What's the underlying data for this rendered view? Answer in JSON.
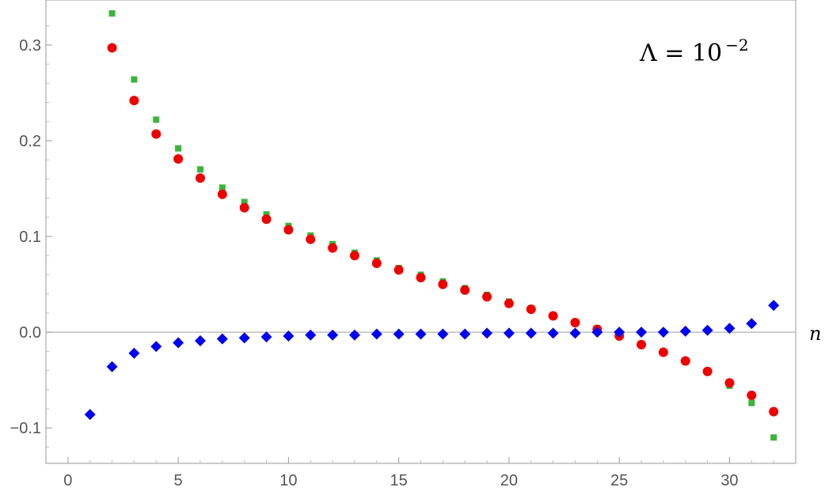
{
  "chart_data": {
    "type": "scatter",
    "title": "",
    "xlabel": "n",
    "ylabel": "",
    "xlim": [
      -1,
      33
    ],
    "ylim": [
      -0.137,
      0.347
    ],
    "x_ticks": [
      0,
      5,
      10,
      15,
      20,
      25,
      30
    ],
    "y_ticks": [
      -0.1,
      0.0,
      0.1,
      0.2,
      0.3
    ],
    "y_tick_labels": [
      "−0.1",
      "0.0",
      "0.1",
      "0.2",
      "0.3"
    ],
    "x_tick_labels": [
      "0",
      "5",
      "10",
      "15",
      "20",
      "25",
      "30"
    ],
    "grid": false,
    "annotation": {
      "base": "Λ = 10",
      "exponent": "−2"
    },
    "series": [
      {
        "marker": "square",
        "color": "#3cb43c",
        "x": [
          2,
          3,
          4,
          5,
          6,
          7,
          8,
          9,
          10,
          11,
          12,
          13,
          14,
          15,
          16,
          17,
          18,
          19,
          20,
          21,
          22,
          23,
          24,
          25,
          26,
          27,
          28,
          29,
          30,
          31,
          32
        ],
        "values": [
          0.333,
          0.264,
          0.222,
          0.192,
          0.17,
          0.151,
          0.136,
          0.123,
          0.111,
          0.101,
          0.092,
          0.083,
          0.075,
          0.067,
          0.06,
          0.053,
          0.046,
          0.039,
          0.032,
          0.025,
          0.018,
          0.011,
          0.004,
          -0.004,
          -0.012,
          -0.021,
          -0.031,
          -0.042,
          -0.056,
          -0.074,
          -0.11
        ]
      },
      {
        "marker": "circle",
        "color": "#ee0000",
        "x": [
          2,
          3,
          4,
          5,
          6,
          7,
          8,
          9,
          10,
          11,
          12,
          13,
          14,
          15,
          16,
          17,
          18,
          19,
          20,
          21,
          22,
          23,
          24,
          25,
          26,
          27,
          28,
          29,
          30,
          31,
          32
        ],
        "values": [
          0.297,
          0.242,
          0.207,
          0.181,
          0.161,
          0.144,
          0.13,
          0.118,
          0.107,
          0.097,
          0.088,
          0.08,
          0.072,
          0.065,
          0.057,
          0.05,
          0.044,
          0.037,
          0.03,
          0.024,
          0.017,
          0.01,
          0.003,
          -0.004,
          -0.013,
          -0.021,
          -0.03,
          -0.041,
          -0.053,
          -0.066,
          -0.083
        ]
      },
      {
        "marker": "diamond",
        "color": "#0000ee",
        "x": [
          1,
          2,
          3,
          4,
          5,
          6,
          7,
          8,
          9,
          10,
          11,
          12,
          13,
          14,
          15,
          16,
          17,
          18,
          19,
          20,
          21,
          22,
          23,
          24,
          25,
          26,
          27,
          28,
          29,
          30,
          31,
          32
        ],
        "values": [
          -0.086,
          -0.036,
          -0.022,
          -0.015,
          -0.011,
          -0.009,
          -0.007,
          -0.006,
          -0.005,
          -0.004,
          -0.003,
          -0.003,
          -0.003,
          -0.002,
          -0.002,
          -0.002,
          -0.002,
          -0.002,
          -0.001,
          -0.001,
          -0.001,
          -0.001,
          -0.001,
          0.0,
          0.0,
          0.0,
          0.0,
          0.001,
          0.002,
          0.004,
          0.009,
          0.028
        ]
      }
    ]
  }
}
